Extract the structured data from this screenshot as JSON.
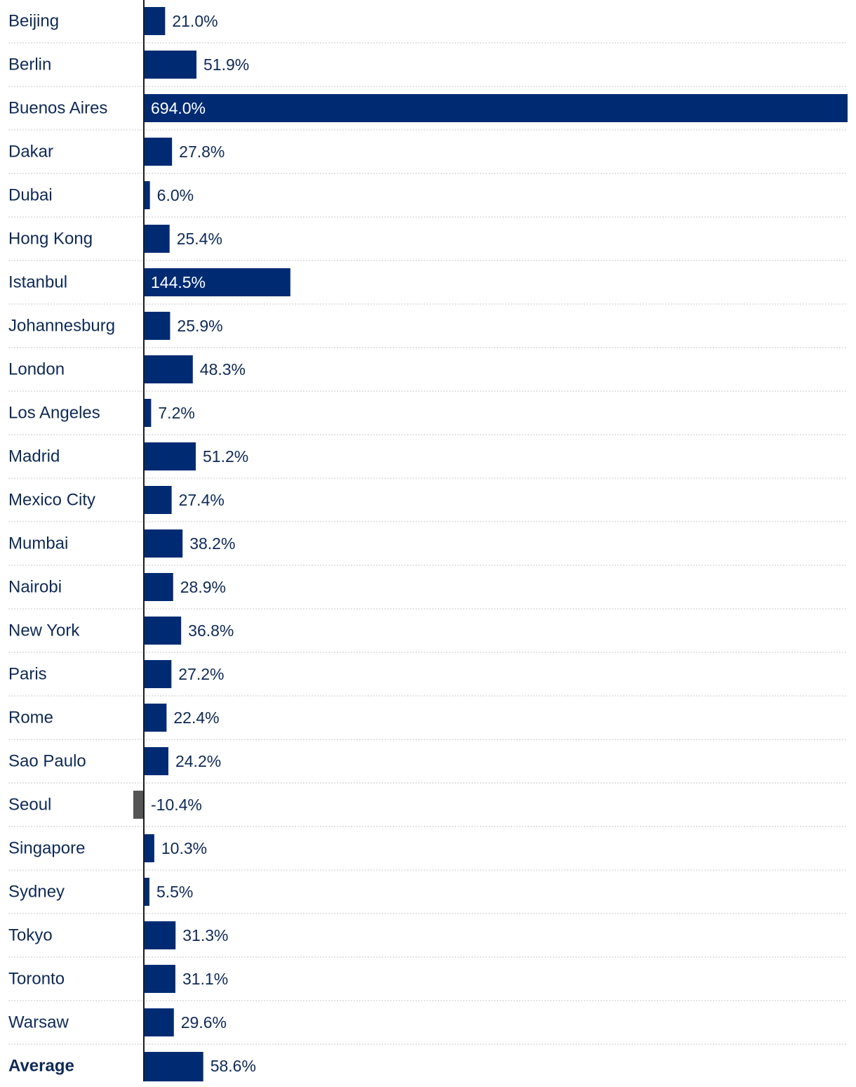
{
  "chart_data": {
    "type": "bar",
    "orientation": "horizontal",
    "categories": [
      "Beijing",
      "Berlin",
      "Buenos Aires",
      "Dakar",
      "Dubai",
      "Hong Kong",
      "Istanbul",
      "Johannesburg",
      "London",
      "Los Angeles",
      "Madrid",
      "Mexico City",
      "Mumbai",
      "Nairobi",
      "New York",
      "Paris",
      "Rome",
      "Sao Paulo",
      "Seoul",
      "Singapore",
      "Sydney",
      "Tokyo",
      "Toronto",
      "Warsaw",
      "Average"
    ],
    "values": [
      21.0,
      51.9,
      694.0,
      27.8,
      6.0,
      25.4,
      144.5,
      25.9,
      48.3,
      7.2,
      51.2,
      27.4,
      38.2,
      28.9,
      36.8,
      27.2,
      22.4,
      24.2,
      -10.4,
      10.3,
      5.5,
      31.3,
      31.1,
      29.6,
      58.6
    ],
    "value_labels": [
      "21.0%",
      "51.9%",
      "694.0%",
      "27.8%",
      "6.0%",
      "25.4%",
      "144.5%",
      "25.9%",
      "48.3%",
      "7.2%",
      "51.2%",
      "27.4%",
      "38.2%",
      "28.9%",
      "36.8%",
      "27.2%",
      "22.4%",
      "24.2%",
      "-10.4%",
      "10.3%",
      "5.5%",
      "31.3%",
      "31.1%",
      "29.6%",
      "58.6%"
    ],
    "bold_categories": [
      "Average"
    ],
    "title": "",
    "xlabel": "",
    "ylabel": "",
    "xlim": [
      -10.4,
      694.0
    ],
    "grid": false,
    "colors": {
      "positive": "#002b73",
      "negative": "#555555",
      "label_text": "#0e2a57",
      "row_separator": "#c8c8c8",
      "axis": "#1b1b1b"
    }
  }
}
